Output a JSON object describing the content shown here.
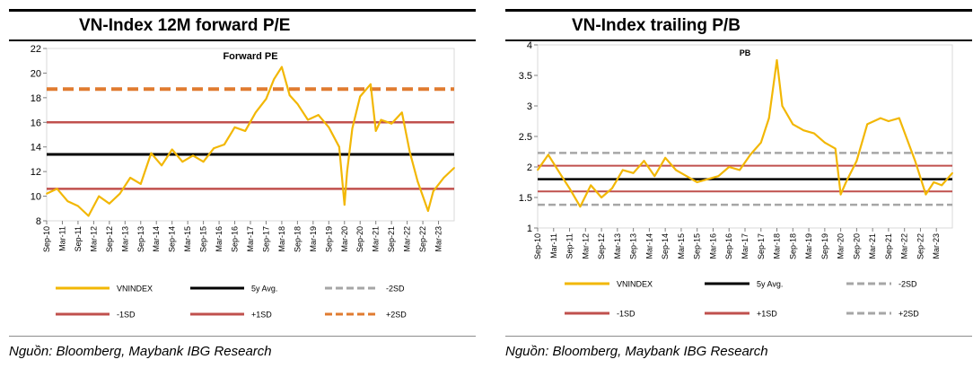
{
  "left": {
    "heading": "VN-Index 12M forward P/E",
    "source": "Nguồn: Bloomberg, Maybank IBG Research"
  },
  "right": {
    "heading": "VN-Index trailing P/B",
    "source": "Nguồn: Bloomberg, Maybank IBG Research"
  },
  "colors": {
    "series": "#f2b705",
    "avg": "#000000",
    "sd1": "#c0504d",
    "sd2_left": "#e07b30",
    "sd2_right": "#a6a6a6",
    "grid": "#d9d9d9"
  },
  "chart_data": [
    {
      "type": "line",
      "title": "Forward PE",
      "xlabel": "",
      "ylabel": "",
      "ylim": [
        8,
        22
      ],
      "yticks": [
        "8",
        "10",
        "12",
        "14",
        "16",
        "18",
        "20",
        "22"
      ],
      "xticks": [
        "Sep-10",
        "Mar-11",
        "Sep-11",
        "Mar-12",
        "Sep-12",
        "Mar-13",
        "Sep-13",
        "Mar-14",
        "Sep-14",
        "Mar-15",
        "Sep-15",
        "Mar-16",
        "Sep-16",
        "Mar-17",
        "Sep-17",
        "Mar-18",
        "Sep-18",
        "Mar-19",
        "Sep-19",
        "Mar-20",
        "Sep-20",
        "Mar-21",
        "Sep-21",
        "Mar-22",
        "Sep-22",
        "Mar-23"
      ],
      "x_start": "Sep-10",
      "x_end": "Sep-23",
      "grid": false,
      "legend_position": "bottom",
      "series": [
        {
          "name": "VNINDEX",
          "x": [
            "Sep-10",
            "Jan-11",
            "May-11",
            "Sep-11",
            "Jan-12",
            "May-12",
            "Sep-12",
            "Jan-13",
            "May-13",
            "Sep-13",
            "Jan-14",
            "May-14",
            "Sep-14",
            "Jan-15",
            "May-15",
            "Sep-15",
            "Jan-16",
            "May-16",
            "Sep-16",
            "Jan-17",
            "May-17",
            "Sep-17",
            "Dec-17",
            "Mar-18",
            "Jun-18",
            "Sep-18",
            "Jan-19",
            "May-19",
            "Sep-19",
            "Jan-20",
            "Mar-20",
            "Apr-20",
            "Jun-20",
            "Sep-20",
            "Jan-21",
            "Mar-21",
            "May-21",
            "Sep-21",
            "Jan-22",
            "Apr-22",
            "Jul-22",
            "Nov-22",
            "Jan-23",
            "May-23",
            "Sep-23"
          ],
          "y": [
            10.2,
            10.6,
            9.6,
            9.2,
            8.4,
            10.0,
            9.4,
            10.2,
            11.5,
            11.0,
            13.5,
            12.5,
            13.8,
            12.8,
            13.3,
            12.8,
            13.9,
            14.2,
            15.6,
            15.3,
            16.8,
            17.9,
            19.5,
            20.5,
            18.2,
            17.5,
            16.2,
            16.6,
            15.6,
            14.0,
            9.3,
            12.0,
            15.5,
            18.1,
            19.1,
            15.3,
            16.2,
            15.9,
            16.8,
            13.6,
            11.2,
            8.8,
            10.4,
            11.5,
            12.3
          ]
        },
        {
          "name": "5y Avg.",
          "y": [
            13.4
          ]
        },
        {
          "name": "-1SD",
          "y": [
            10.6
          ]
        },
        {
          "name": "+1SD",
          "y": [
            16.0
          ]
        },
        {
          "name": "+2SD",
          "y": [
            18.7
          ]
        }
      ]
    },
    {
      "type": "line",
      "title": "PB",
      "xlabel": "",
      "ylabel": "",
      "ylim": [
        1,
        4
      ],
      "yticks": [
        "1",
        "1.5",
        "2",
        "2.5",
        "3",
        "3.5",
        "4"
      ],
      "xticks": [
        "Sep-10",
        "Mar-11",
        "Sep-11",
        "Mar-12",
        "Sep-12",
        "Mar-13",
        "Sep-13",
        "Mar-14",
        "Sep-14",
        "Mar-15",
        "Sep-15",
        "Mar-16",
        "Sep-16",
        "Mar-17",
        "Sep-17",
        "Mar-18",
        "Sep-18",
        "Mar-19",
        "Sep-19",
        "Mar-20",
        "Sep-20",
        "Mar-21",
        "Sep-21",
        "Mar-22",
        "Sep-22",
        "Mar-23"
      ],
      "x_start": "Sep-10",
      "x_end": "Sep-23",
      "grid": false,
      "legend_position": "bottom",
      "series": [
        {
          "name": "VNINDEX",
          "x": [
            "Sep-10",
            "Jan-11",
            "Jun-11",
            "Sep-11",
            "Jan-12",
            "May-12",
            "Sep-12",
            "Jan-13",
            "May-13",
            "Sep-13",
            "Jan-14",
            "May-14",
            "Sep-14",
            "Jan-15",
            "May-15",
            "Sep-15",
            "Jan-16",
            "May-16",
            "Sep-16",
            "Jan-17",
            "May-17",
            "Sep-17",
            "Dec-17",
            "Mar-18",
            "May-18",
            "Sep-18",
            "Jan-19",
            "May-19",
            "Sep-19",
            "Jan-20",
            "Mar-20",
            "May-20",
            "Sep-20",
            "Jan-21",
            "Jun-21",
            "Sep-21",
            "Jan-22",
            "Jul-22",
            "Nov-22",
            "Feb-23",
            "May-23",
            "Sep-23"
          ],
          "y": [
            1.95,
            2.2,
            1.85,
            1.65,
            1.35,
            1.7,
            1.5,
            1.65,
            1.95,
            1.9,
            2.1,
            1.85,
            2.15,
            1.95,
            1.85,
            1.75,
            1.8,
            1.85,
            2.0,
            1.95,
            2.2,
            2.4,
            2.8,
            3.75,
            3.0,
            2.7,
            2.6,
            2.55,
            2.4,
            2.3,
            1.55,
            1.75,
            2.1,
            2.7,
            2.8,
            2.75,
            2.8,
            2.1,
            1.55,
            1.75,
            1.7,
            1.9
          ]
        },
        {
          "name": "5y Avg.",
          "y": [
            1.8
          ]
        },
        {
          "name": "-1SD",
          "y": [
            1.6
          ]
        },
        {
          "name": "-2SD",
          "y": [
            1.38
          ]
        },
        {
          "name": "+1SD",
          "y": [
            2.02
          ]
        },
        {
          "name": "+2SD",
          "y": [
            2.23
          ]
        }
      ]
    }
  ],
  "legend_left": [
    {
      "label": "VNINDEX",
      "color": "#f2b705",
      "dash": ""
    },
    {
      "label": "5y Avg.",
      "color": "#000000",
      "dash": ""
    },
    {
      "label": "-2SD",
      "color": "#a6a6a6",
      "dash": "8 4"
    },
    {
      "label": "-1SD",
      "color": "#c0504d",
      "dash": ""
    },
    {
      "label": "+1SD",
      "color": "#c0504d",
      "dash": ""
    },
    {
      "label": "+2SD",
      "color": "#e07b30",
      "dash": "8 4"
    }
  ],
  "legend_right": [
    {
      "label": "VNINDEX",
      "color": "#f2b705",
      "dash": ""
    },
    {
      "label": "5y Avg.",
      "color": "#000000",
      "dash": ""
    },
    {
      "label": "-2SD",
      "color": "#a6a6a6",
      "dash": "8 4"
    },
    {
      "label": "-1SD",
      "color": "#c0504d",
      "dash": ""
    },
    {
      "label": "+1SD",
      "color": "#c0504d",
      "dash": ""
    },
    {
      "label": "+2SD",
      "color": "#a6a6a6",
      "dash": "8 4"
    }
  ]
}
